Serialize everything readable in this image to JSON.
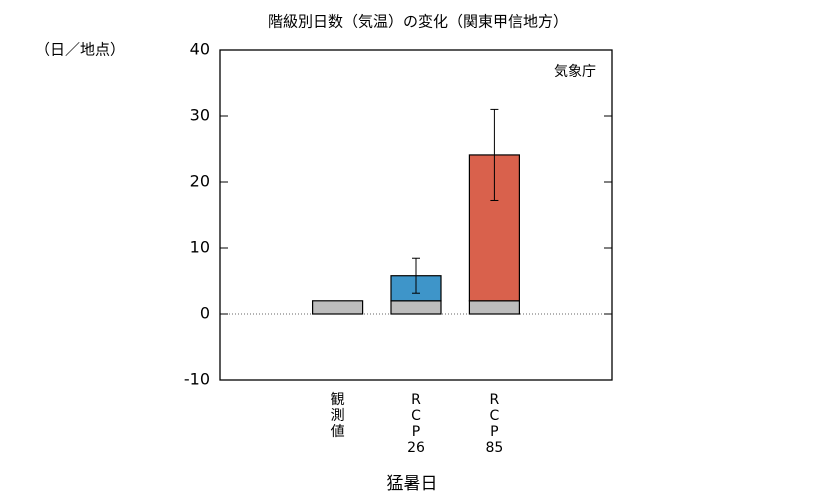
{
  "chart_data": {
    "type": "bar",
    "title": "階級別日数（気温）の変化（関東甲信地方）",
    "y_unit": "（日／地点）",
    "annotation": "気象庁",
    "xlabel": "猛暑日",
    "categories": [
      null,
      "観測値",
      "RCP26",
      "RCP85",
      null
    ],
    "series": [
      {
        "color": "#bdbdbd",
        "values": [
          null,
          2,
          2,
          2,
          null
        ]
      },
      {
        "colors": [
          null,
          null,
          "#3e95c9",
          "#d9614c",
          null
        ],
        "values": [
          null,
          null,
          3.8,
          22.1,
          null
        ],
        "errors": [
          null,
          null,
          2.65,
          6.9,
          null
        ]
      }
    ],
    "ylim": [
      -10,
      40
    ],
    "yticks": [
      -10,
      0,
      10,
      20,
      30,
      40
    ]
  }
}
